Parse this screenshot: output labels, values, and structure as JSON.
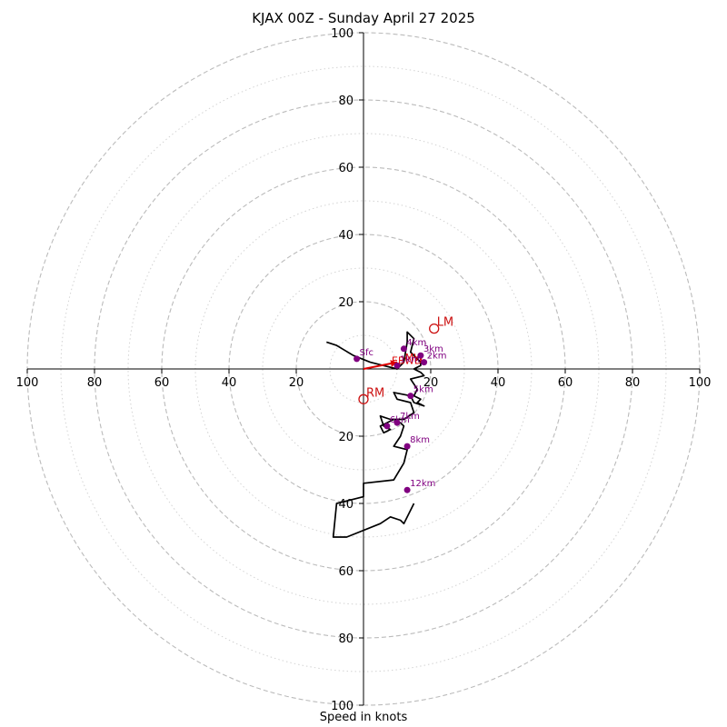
{
  "chart_data": {
    "type": "line",
    "title": "KJAX 00Z - Sunday April 27 2025",
    "xlabel": "Speed in knots",
    "range": [
      -100,
      100
    ],
    "rings": {
      "major": [
        20,
        40,
        60,
        80,
        100
      ],
      "minor": [
        10,
        30,
        50,
        70,
        90
      ],
      "major_color": "#bbbbbb",
      "minor_color": "#d3d3d3"
    },
    "ticks": {
      "x": [
        "100",
        "80",
        "60",
        "40",
        "20",
        "20",
        "40",
        "60",
        "80",
        "100"
      ],
      "x_values": [
        -100,
        -80,
        -60,
        -40,
        -20,
        20,
        40,
        60,
        80,
        100
      ],
      "y": [
        "100",
        "80",
        "60",
        "40",
        "20",
        "20",
        "40",
        "60",
        "80",
        "100"
      ],
      "y_values": [
        100,
        80,
        60,
        40,
        20,
        -20,
        -40,
        -60,
        -80,
        -100
      ]
    },
    "hodograph": {
      "color": "#000000",
      "x": [
        -11,
        -8,
        -3,
        2,
        6,
        10,
        12,
        13,
        13,
        15,
        14,
        16,
        17,
        17,
        15,
        17,
        18,
        14,
        16,
        15,
        17,
        16,
        18,
        15,
        14,
        9,
        10,
        14,
        15,
        12,
        8,
        5,
        6,
        8,
        6,
        5,
        9,
        11,
        12,
        11,
        9,
        13,
        12,
        9,
        0,
        0,
        -8,
        -9,
        -5,
        5,
        8,
        11,
        12,
        15
      ],
      "y": [
        8,
        7,
        4,
        2,
        1,
        0,
        2,
        8,
        11,
        9,
        5,
        3,
        2,
        1,
        0,
        -1,
        -2,
        -3,
        -6,
        -8,
        -9,
        -10,
        -11,
        -10,
        -8,
        -7,
        -9,
        -10,
        -13,
        -15,
        -15,
        -14,
        -17,
        -18,
        -19,
        -17,
        -15,
        -16,
        -17,
        -20,
        -23,
        -24,
        -28,
        -33,
        -34,
        -38,
        -40,
        -50,
        -50,
        -46,
        -44,
        -45,
        -46,
        -40
      ]
    },
    "height_markers": {
      "color": "#800080",
      "points": [
        {
          "label": "Sfc",
          "x": -2,
          "y": 3
        },
        {
          "label": "1km",
          "x": 10,
          "y": 1
        },
        {
          "label": "2km",
          "x": 18,
          "y": 2
        },
        {
          "label": "3km",
          "x": 17,
          "y": 4
        },
        {
          "label": "4km",
          "x": 12,
          "y": 6
        },
        {
          "label": "5km",
          "x": 14,
          "y": -8
        },
        {
          "label": "6km",
          "x": 7,
          "y": -17
        },
        {
          "label": "7km",
          "x": 10,
          "y": -16
        },
        {
          "label": "8km",
          "x": 13,
          "y": -23
        },
        {
          "label": "12km",
          "x": 13,
          "y": -36
        }
      ]
    },
    "storm_motion": {
      "color": "#cc1111",
      "points": [
        {
          "label": "LM",
          "x": 21,
          "y": 12
        },
        {
          "label": "RM",
          "x": 0,
          "y": -9
        }
      ]
    },
    "shear_vector": {
      "label": "EBWD",
      "color": "#dd0000",
      "x1": 0,
      "y1": 0,
      "x2": 10,
      "y2": 2
    },
    "mean_wind": {
      "label": "MW",
      "x": 14,
      "y": 3
    }
  }
}
